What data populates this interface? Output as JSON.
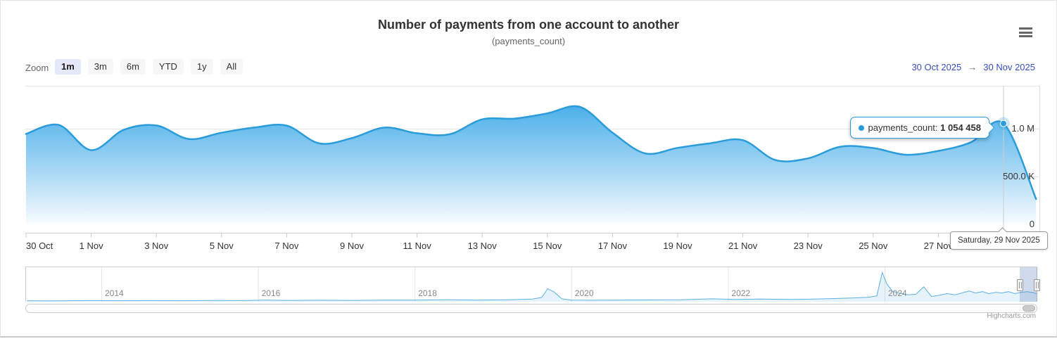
{
  "header": {
    "title": "Number of payments from one account to another",
    "subtitle": "(payments_count)"
  },
  "range_selector": {
    "zoom_label": "Zoom",
    "buttons": [
      {
        "label": "1m",
        "selected": true
      },
      {
        "label": "3m",
        "selected": false
      },
      {
        "label": "6m",
        "selected": false
      },
      {
        "label": "YTD",
        "selected": false
      },
      {
        "label": "1y",
        "selected": false
      },
      {
        "label": "All",
        "selected": false
      }
    ],
    "from_date": "30 Oct 2025",
    "arrow": "→",
    "to_date": "30 Nov 2025"
  },
  "tooltip": {
    "series_label": "payments_count",
    "separator": ": ",
    "value": "1 054 458"
  },
  "date_tooltip": {
    "text": "Saturday, 29 Nov 2025"
  },
  "credits": {
    "text": "Highcharts.com"
  },
  "colors": {
    "series_line": "#2b9cda",
    "fill_top": "#47aeea",
    "fill_mid": "#a6d7f4",
    "fill_bottom": "#f8fcff",
    "navigator_line": "#5cb0e2",
    "selected_button_bg": "#e4e8f8",
    "button_bg": "#f7f7f7",
    "input_text": "#3a4cc5",
    "mask_fill": "rgba(102,133,194,0.3)",
    "grid_line": "#e6e6e6",
    "axis_line": "#cccccc",
    "crosshair": "#cccccc"
  },
  "chart_data": {
    "type": "area",
    "title": "Number of payments from one account to another",
    "subtitle": "(payments_count)",
    "xlabel": "",
    "ylabel": "",
    "ylim": [
      0,
      1450000
    ],
    "grid": "horizontal",
    "yaxis_side": "right",
    "legend": false,
    "yticks": [
      {
        "label": "1.0 M",
        "value": 1000000
      },
      {
        "label": "500.0 K",
        "value": 500000
      },
      {
        "label": "0",
        "value": 0
      }
    ],
    "xtick_labels": [
      "30 Oct",
      "1 Nov",
      "3 Nov",
      "5 Nov",
      "7 Nov",
      "9 Nov",
      "11 Nov",
      "13 Nov",
      "15 Nov",
      "17 Nov",
      "19 Nov",
      "21 Nov",
      "23 Nov",
      "25 Nov",
      "27 Nov"
    ],
    "visible_range": {
      "from": "30 Oct 2025",
      "to": "30 Nov 2025"
    },
    "series": [
      {
        "name": "payments_count",
        "dates": [
          "30 Oct",
          "31 Oct",
          "1 Nov",
          "2 Nov",
          "3 Nov",
          "4 Nov",
          "5 Nov",
          "6 Nov",
          "7 Nov",
          "8 Nov",
          "9 Nov",
          "10 Nov",
          "11 Nov",
          "12 Nov",
          "13 Nov",
          "14 Nov",
          "15 Nov",
          "16 Nov",
          "17 Nov",
          "18 Nov",
          "19 Nov",
          "20 Nov",
          "21 Nov",
          "22 Nov",
          "23 Nov",
          "24 Nov",
          "25 Nov",
          "26 Nov",
          "27 Nov",
          "28 Nov",
          "29 Nov",
          "30 Nov"
        ],
        "values": [
          945000,
          1040000,
          776000,
          988000,
          1034000,
          892000,
          958000,
          1012000,
          1032000,
          846000,
          902000,
          1012000,
          952000,
          942000,
          1098000,
          1106000,
          1160000,
          1228000,
          958000,
          742000,
          800000,
          848000,
          880000,
          672000,
          690000,
          812000,
          798000,
          728000,
          768000,
          858000,
          1054458,
          265000
        ]
      }
    ],
    "highlight_point": {
      "date": "29 Nov",
      "value": 1054458,
      "formatted": "1 054 458",
      "full_date": "Saturday, 29 Nov 2025"
    },
    "navigator": {
      "year_ticks": [
        "2014",
        "2016",
        "2018",
        "2020",
        "2022",
        "2024"
      ],
      "x_range": [
        2013.05,
        2025.95
      ],
      "points": [
        [
          2013.05,
          3
        ],
        [
          2013.3,
          2.5
        ],
        [
          2013.6,
          3
        ],
        [
          2013.9,
          3.5
        ],
        [
          2014.2,
          3
        ],
        [
          2014.6,
          3.5
        ],
        [
          2015.0,
          3
        ],
        [
          2015.4,
          4
        ],
        [
          2015.8,
          3.5
        ],
        [
          2016.1,
          5
        ],
        [
          2016.4,
          4
        ],
        [
          2016.8,
          4.5
        ],
        [
          2017.2,
          4
        ],
        [
          2017.6,
          5
        ],
        [
          2018.0,
          5
        ],
        [
          2018.4,
          6
        ],
        [
          2018.8,
          5
        ],
        [
          2019.2,
          6
        ],
        [
          2019.5,
          8
        ],
        [
          2019.62,
          13
        ],
        [
          2019.7,
          40
        ],
        [
          2019.78,
          30
        ],
        [
          2019.88,
          9
        ],
        [
          2020.0,
          5
        ],
        [
          2020.3,
          4.5
        ],
        [
          2020.6,
          5
        ],
        [
          2021.0,
          5.5
        ],
        [
          2021.4,
          6
        ],
        [
          2021.8,
          9
        ],
        [
          2022.1,
          7
        ],
        [
          2022.4,
          8
        ],
        [
          2022.8,
          7
        ],
        [
          2023.1,
          8
        ],
        [
          2023.4,
          10
        ],
        [
          2023.65,
          12
        ],
        [
          2023.8,
          14
        ],
        [
          2023.9,
          18
        ],
        [
          2023.97,
          90
        ],
        [
          2024.03,
          55
        ],
        [
          2024.1,
          32
        ],
        [
          2024.2,
          26
        ],
        [
          2024.3,
          21
        ],
        [
          2024.4,
          23
        ],
        [
          2024.5,
          46
        ],
        [
          2024.6,
          16
        ],
        [
          2024.7,
          20
        ],
        [
          2024.8,
          25
        ],
        [
          2024.9,
          21
        ],
        [
          2025.0,
          28
        ],
        [
          2025.08,
          33
        ],
        [
          2025.16,
          27
        ],
        [
          2025.25,
          31
        ],
        [
          2025.33,
          25
        ],
        [
          2025.42,
          29
        ],
        [
          2025.5,
          27
        ],
        [
          2025.58,
          31
        ],
        [
          2025.66,
          25
        ],
        [
          2025.74,
          29
        ],
        [
          2025.82,
          31
        ],
        [
          2025.9,
          28
        ],
        [
          2025.95,
          24
        ]
      ]
    }
  }
}
